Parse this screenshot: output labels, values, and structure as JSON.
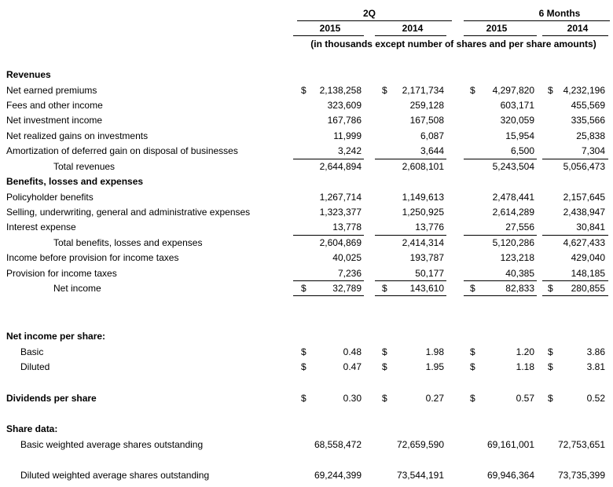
{
  "header": {
    "groups": [
      {
        "label": "2Q",
        "years": [
          "2015",
          "2014"
        ]
      },
      {
        "label": "6 Months",
        "years": [
          "2015",
          "2014"
        ]
      }
    ],
    "note": "(in thousands except number of shares and per share amounts)"
  },
  "rows": [
    {
      "label": "Revenues"
    },
    {
      "label": "Net earned premiums",
      "signs": [
        "$",
        "$",
        "$",
        "$"
      ],
      "values": [
        "2,138,258",
        "2,171,734",
        "4,297,820",
        "4,232,196"
      ]
    },
    {
      "label": "Fees and other income",
      "values": [
        "323,609",
        "259,128",
        "603,171",
        "455,569"
      ]
    },
    {
      "label": "Net investment income",
      "values": [
        "167,786",
        "167,508",
        "320,059",
        "335,566"
      ]
    },
    {
      "label": "Net realized gains on investments",
      "values": [
        "11,999",
        "6,087",
        "15,954",
        "25,838"
      ]
    },
    {
      "label": "Amortization of deferred gain on disposal of businesses",
      "values": [
        "3,242",
        "3,644",
        "6,500",
        "7,304"
      ]
    },
    {
      "label": "Total revenues",
      "values": [
        "2,644,894",
        "2,608,101",
        "5,243,504",
        "5,056,473"
      ]
    },
    {
      "label": "Benefits, losses and expenses"
    },
    {
      "label": "Policyholder benefits",
      "values": [
        "1,267,714",
        "1,149,613",
        "2,478,441",
        "2,157,645"
      ]
    },
    {
      "label": "Selling, underwriting, general and administrative expenses",
      "values": [
        "1,323,377",
        "1,250,925",
        "2,614,289",
        "2,438,947"
      ]
    },
    {
      "label": "Interest expense",
      "values": [
        "13,778",
        "13,776",
        "27,556",
        "30,841"
      ]
    },
    {
      "label": "Total benefits, losses and expenses",
      "values": [
        "2,604,869",
        "2,414,314",
        "5,120,286",
        "4,627,433"
      ]
    },
    {
      "label": "Income before provision for income taxes",
      "values": [
        "40,025",
        "193,787",
        "123,218",
        "429,040"
      ]
    },
    {
      "label": "Provision for income taxes",
      "values": [
        "7,236",
        "50,177",
        "40,385",
        "148,185"
      ]
    },
    {
      "label": "Net income",
      "signs": [
        "$",
        "$",
        "$",
        "$"
      ],
      "values": [
        "32,789",
        "143,610",
        "82,833",
        "280,855"
      ]
    },
    {
      "label": "Net income per share:"
    },
    {
      "label": "Basic",
      "signs": [
        "$",
        "$",
        "$",
        "$"
      ],
      "values": [
        "0.48",
        "1.98",
        "1.20",
        "3.86"
      ]
    },
    {
      "label": "Diluted",
      "signs": [
        "$",
        "$",
        "$",
        "$"
      ],
      "values": [
        "0.47",
        "1.95",
        "1.18",
        "3.81"
      ]
    },
    {
      "label": "Dividends per share",
      "signs": [
        "$",
        "$",
        "$",
        "$"
      ],
      "values": [
        "0.30",
        "0.27",
        "0.57",
        "0.52"
      ]
    },
    {
      "label": "Share data:"
    },
    {
      "label": "Basic weighted average shares outstanding",
      "values": [
        "68,558,472",
        "72,659,590",
        "69,161,001",
        "72,753,651"
      ]
    },
    {
      "label": "Diluted weighted average shares outstanding",
      "values": [
        "69,244,399",
        "73,544,191",
        "69,946,364",
        "73,735,399"
      ]
    }
  ]
}
